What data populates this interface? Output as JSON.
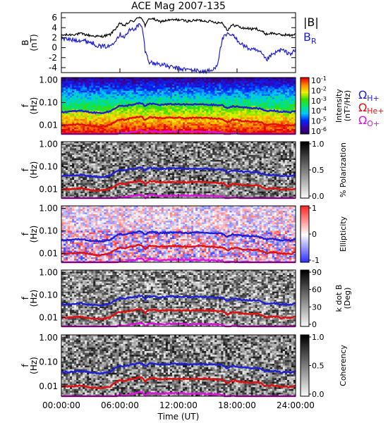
{
  "title": "ACE Mag 2007-135",
  "time_axis": {
    "label": "Time (UT)",
    "ticks": [
      "00:00:00",
      "06:00:00",
      "12:00:00",
      "18:00:00",
      "24:00:00"
    ],
    "range_hours": [
      0,
      24
    ]
  },
  "colors": {
    "B_total": "#000000",
    "B_R": "#1f1fd6",
    "H+": "#1f1fd6",
    "He+": "#e01010",
    "O+": "#e010e0"
  },
  "legend_labels": {
    "B_total": "|B|",
    "B_R_main": "B",
    "B_R_sub": "R",
    "H_sym": "Ω",
    "H_sub": "H+",
    "He_sym": "Ω",
    "He_sub": "He+",
    "O_sym": "Ω",
    "O_sub": "O+"
  },
  "chart_data": [
    {
      "type": "line",
      "panel": "field",
      "ylabel": "B",
      "yunit": "(nT)",
      "ylim": [
        -5,
        7
      ],
      "yticks": [
        "6",
        "4",
        "2",
        "0",
        "-2",
        "-4"
      ],
      "x_hours": [
        0,
        1,
        2,
        3,
        4,
        5,
        6,
        6.5,
        7,
        7.5,
        8,
        8.3,
        8.6,
        9,
        9.5,
        10,
        11,
        12,
        13,
        14,
        14.5,
        15,
        15.5,
        16,
        16.5,
        17,
        17.5,
        18,
        18.5,
        19,
        19.5,
        20,
        20.5,
        21,
        21.5,
        22,
        22.5,
        23,
        23.5,
        24
      ],
      "series": [
        {
          "name": "|B|",
          "values": [
            2.5,
            2.6,
            2.8,
            2.4,
            2.2,
            2.6,
            4.8,
            4.4,
            5.2,
            5.4,
            6.2,
            5.8,
            4.3,
            5.9,
            5.7,
            5.2,
            5.5,
            5.6,
            5.3,
            5.5,
            5.4,
            5.3,
            5.2,
            5.0,
            5.0,
            3.5,
            4.5,
            4.4,
            3.9,
            3.9,
            3.7,
            3.8,
            3.3,
            2.7,
            2.9,
            2.8,
            2.5,
            2.6,
            2.4,
            2.8
          ]
        },
        {
          "name": "B",
          "values": [
            1.8,
            1.6,
            1.5,
            1.1,
            0.2,
            0.3,
            2.7,
            2.2,
            3.5,
            3.8,
            4.6,
            3.9,
            -0.8,
            -2.8,
            -3.2,
            -3.2,
            -3.8,
            -4.2,
            -4.4,
            -4.6,
            -4.8,
            -4.7,
            -4.6,
            -3.2,
            1.8,
            2.6,
            2.5,
            1.6,
            0.7,
            0.0,
            -0.4,
            -0.6,
            -1.2,
            -2.5,
            -1.6,
            -1.0,
            -0.4,
            -0.9,
            -1.2,
            -0.6
          ]
        }
      ]
    },
    {
      "type": "heatmap",
      "panel": "intensity",
      "ylabel": "f",
      "yunit": "(Hz)",
      "yscale": "log",
      "ylim": [
        0.004,
        1.3
      ],
      "yticks": [
        "1.00",
        "0.10",
        "0.01"
      ],
      "colorbar": {
        "label_line1": "Intensity",
        "label_line2": "(nT²/Hz)",
        "scale": "log",
        "range": [
          1e-06,
          0.1
        ],
        "tick_bases": [
          "10",
          "10",
          "10",
          "10",
          "10",
          "10"
        ],
        "tick_exps": [
          "-1",
          "-2",
          "-3",
          "-4",
          "-5",
          "-6"
        ],
        "colormap": "rainbow"
      }
    },
    {
      "type": "heatmap",
      "panel": "polarization",
      "ylabel": "f",
      "yunit": "(Hz)",
      "yscale": "log",
      "ylim": [
        0.004,
        1.3
      ],
      "yticks": [
        "1.00",
        "0.10",
        "0.01"
      ],
      "colorbar": {
        "label": "% Polarization",
        "range": [
          0,
          1
        ],
        "ticks": [
          "1.0",
          "0.5",
          "0.0"
        ],
        "colormap": "gray"
      }
    },
    {
      "type": "heatmap",
      "panel": "ellipticity",
      "ylabel": "f",
      "yunit": "(Hz)",
      "yscale": "log",
      "ylim": [
        0.004,
        1.3
      ],
      "yticks": [
        "1.00",
        "0.10",
        "0.01"
      ],
      "colorbar": {
        "label": "Ellipticity",
        "range": [
          -1,
          1
        ],
        "ticks": [
          "1",
          "0",
          "-1"
        ],
        "colormap": "blue-white-red"
      }
    },
    {
      "type": "heatmap",
      "panel": "kdotb",
      "ylabel": "f",
      "yunit": "(Hz)",
      "yscale": "log",
      "ylim": [
        0.004,
        1.3
      ],
      "yticks": [
        "1.00",
        "0.10",
        "0.01"
      ],
      "colorbar": {
        "label_line1": "k dot B",
        "label_line2": "(Deg)",
        "range": [
          0,
          90
        ],
        "ticks": [
          "90",
          "60",
          "30",
          "0"
        ],
        "colormap": "gray"
      }
    },
    {
      "type": "heatmap",
      "panel": "coherency",
      "ylabel": "f",
      "yunit": "(Hz)",
      "yscale": "log",
      "ylim": [
        0.004,
        1.3
      ],
      "yticks": [
        "1.00",
        "0.10",
        "0.01"
      ],
      "colorbar": {
        "label": "Coherency",
        "range": [
          0,
          1
        ],
        "ticks": [
          "1.0",
          "0.5",
          "0.0"
        ],
        "colormap": "gray"
      }
    }
  ],
  "gyrofrequency_hz": {
    "x_hours": [
      0,
      1,
      2,
      3,
      4,
      5,
      6,
      6.5,
      7,
      7.5,
      8,
      8.3,
      8.6,
      9,
      9.5,
      10,
      11,
      12,
      13,
      14,
      14.5,
      15,
      15.5,
      16,
      16.5,
      17,
      17.5,
      18,
      18.5,
      19,
      19.5,
      20,
      20.5,
      21,
      21.5,
      22,
      22.5,
      23,
      23.5,
      24
    ],
    "H+": [
      0.038,
      0.04,
      0.043,
      0.037,
      0.034,
      0.04,
      0.073,
      0.067,
      0.079,
      0.082,
      0.094,
      0.088,
      0.066,
      0.09,
      0.087,
      0.079,
      0.084,
      0.085,
      0.081,
      0.084,
      0.082,
      0.081,
      0.079,
      0.076,
      0.076,
      0.053,
      0.069,
      0.067,
      0.06,
      0.06,
      0.056,
      0.058,
      0.05,
      0.041,
      0.044,
      0.043,
      0.038,
      0.04,
      0.037,
      0.043
    ],
    "He+": [
      0.0095,
      0.01,
      0.011,
      0.009,
      0.0085,
      0.01,
      0.018,
      0.017,
      0.02,
      0.021,
      0.024,
      0.022,
      0.016,
      0.022,
      0.022,
      0.02,
      0.021,
      0.021,
      0.02,
      0.021,
      0.021,
      0.02,
      0.02,
      0.019,
      0.019,
      0.013,
      0.017,
      0.017,
      0.015,
      0.015,
      0.014,
      0.015,
      0.013,
      0.01,
      0.011,
      0.011,
      0.0095,
      0.01,
      0.0092,
      0.011
    ],
    "O+": [
      0.0024,
      0.0025,
      0.0027,
      0.0023,
      0.0021,
      0.0025,
      0.0046,
      0.0042,
      0.0049,
      0.0051,
      0.0059,
      0.0055,
      0.0041,
      0.0056,
      0.0054,
      0.0049,
      0.0052,
      0.0053,
      0.005,
      0.0052,
      0.0051,
      0.005,
      0.0049,
      0.0047,
      0.0047,
      0.0033,
      0.0043,
      0.0042,
      0.0037,
      0.0037,
      0.0035,
      0.0036,
      0.0031,
      0.0026,
      0.0027,
      0.0027,
      0.0024,
      0.0025,
      0.0023,
      0.0027
    ]
  }
}
